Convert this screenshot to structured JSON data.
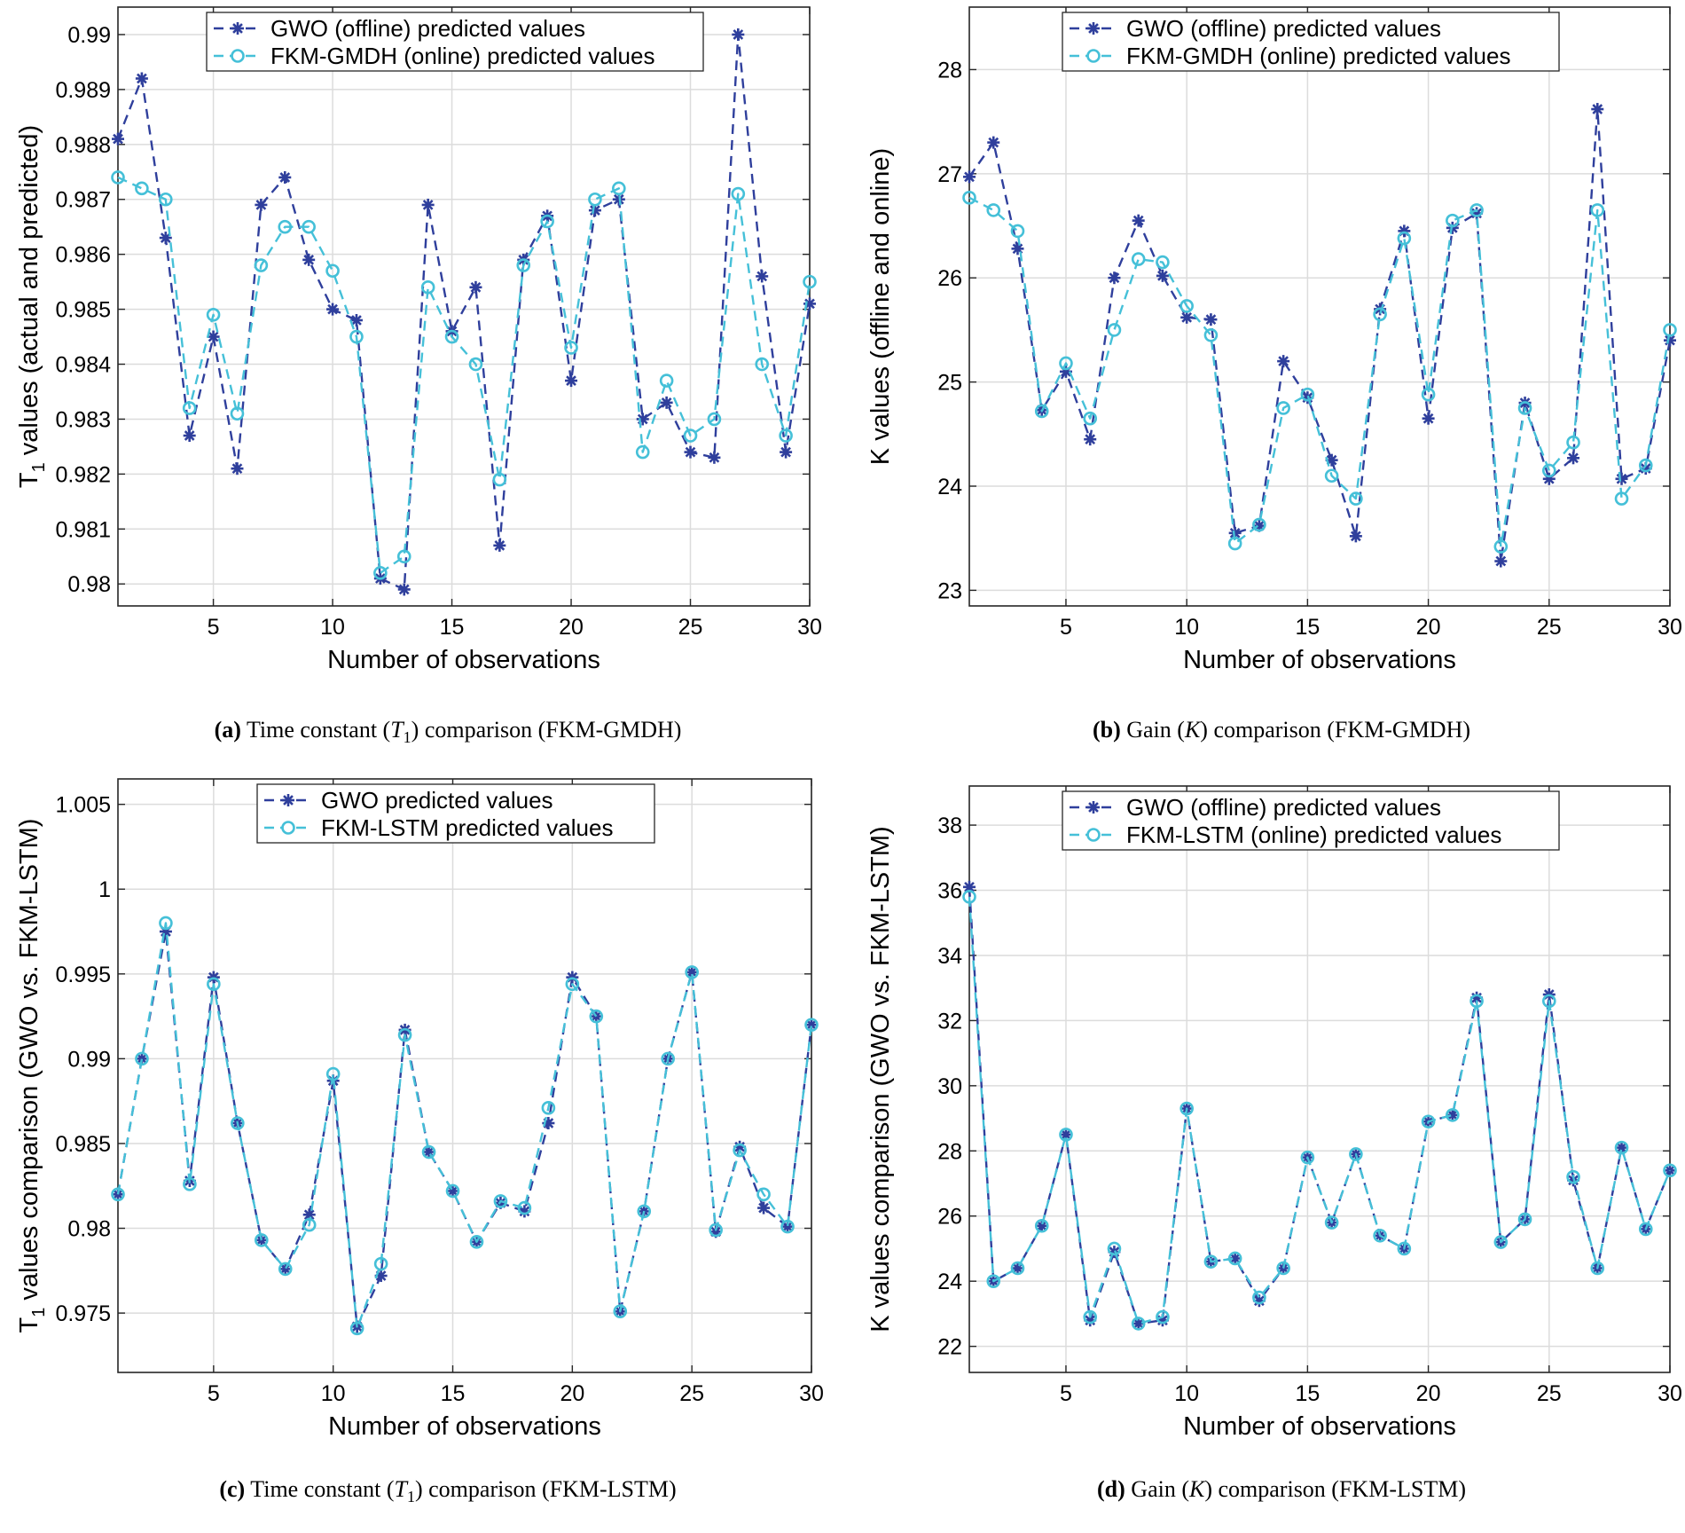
{
  "charts": [
    {
      "id": "a",
      "caption": {
        "label": "(a)",
        "before": "Time constant (",
        "symbol": "T",
        "sub": "1",
        "after": ") comparison (FKM-GMDH)"
      },
      "chart_data": {
        "type": "line",
        "xlabel": "Number of observations",
        "ylabel": "T1 values (actual and predicted)",
        "ylabel_main": "T",
        "ylabel_sub": "1",
        "ylabel_rest": " values (actual and predicted)",
        "xlim": [
          1,
          30
        ],
        "ylim": [
          0.9796,
          0.9905
        ],
        "xticks": [
          5,
          10,
          15,
          20,
          25,
          30
        ],
        "yticks": [
          0.98,
          0.981,
          0.982,
          0.983,
          0.984,
          0.985,
          0.986,
          0.987,
          0.988,
          0.989,
          0.99
        ],
        "ytick_labels": [
          "0.98",
          "0.981",
          "0.982",
          "0.983",
          "0.984",
          "0.985",
          "0.986",
          "0.987",
          "0.988",
          "0.989",
          "0.99"
        ],
        "legend_position": "top-center",
        "x": [
          1,
          2,
          3,
          4,
          5,
          6,
          7,
          8,
          9,
          10,
          11,
          12,
          13,
          14,
          15,
          16,
          17,
          18,
          19,
          20,
          21,
          22,
          23,
          24,
          25,
          26,
          27,
          28,
          29,
          30
        ],
        "series": [
          {
            "name": "GWO (offline) predicted values",
            "color": "#2f3f9c",
            "marker": "star",
            "values": [
              0.9881,
              0.9892,
              0.9863,
              0.9827,
              0.9845,
              0.9821,
              0.9869,
              0.9874,
              0.9859,
              0.985,
              0.9848,
              0.9801,
              0.9799,
              0.9869,
              0.9846,
              0.9854,
              0.9807,
              0.9859,
              0.9867,
              0.9837,
              0.9868,
              0.987,
              0.983,
              0.9833,
              0.9824,
              0.9823,
              0.99,
              0.9856,
              0.9824,
              0.9851
            ]
          },
          {
            "name": "FKM-GMDH (online) predicted values",
            "color": "#45c0d8",
            "marker": "circle",
            "values": [
              0.9874,
              0.9872,
              0.987,
              0.9832,
              0.9849,
              0.9831,
              0.9858,
              0.9865,
              0.9865,
              0.9857,
              0.9845,
              0.9802,
              0.9805,
              0.9854,
              0.9845,
              0.984,
              0.9819,
              0.9858,
              0.9866,
              0.9843,
              0.987,
              0.9872,
              0.9824,
              0.9837,
              0.9827,
              0.983,
              0.9871,
              0.984,
              0.9827,
              0.9855
            ]
          }
        ]
      }
    },
    {
      "id": "b",
      "caption": {
        "label": "(b)",
        "before": "Gain (",
        "symbol": "K",
        "sub": "",
        "after": ") comparison (FKM-GMDH)"
      },
      "chart_data": {
        "type": "line",
        "xlabel": "Number of observations",
        "ylabel": "K values (offline and online)",
        "xlim": [
          1,
          30
        ],
        "ylim": [
          22.85,
          28.6
        ],
        "xticks": [
          5,
          10,
          15,
          20,
          25,
          30
        ],
        "yticks": [
          23,
          24,
          25,
          26,
          27,
          28
        ],
        "ytick_labels": [
          "23",
          "24",
          "25",
          "26",
          "27",
          "28"
        ],
        "legend_position": "top-center",
        "x": [
          1,
          2,
          3,
          4,
          5,
          6,
          7,
          8,
          9,
          10,
          11,
          12,
          13,
          14,
          15,
          16,
          17,
          18,
          19,
          20,
          21,
          22,
          23,
          24,
          25,
          26,
          27,
          28,
          29,
          30
        ],
        "series": [
          {
            "name": "GWO (offline) predicted values",
            "color": "#2f3f9c",
            "marker": "star",
            "values": [
              26.97,
              27.3,
              26.28,
              24.73,
              25.1,
              24.45,
              26.0,
              26.55,
              26.02,
              25.62,
              25.6,
              23.55,
              23.62,
              25.2,
              24.85,
              24.25,
              23.52,
              25.7,
              26.45,
              24.65,
              26.48,
              26.62,
              23.28,
              24.8,
              24.07,
              24.27,
              27.62,
              24.07,
              24.17,
              25.4
            ]
          },
          {
            "name": "FKM-GMDH (online) predicted values",
            "color": "#45c0d8",
            "marker": "circle",
            "values": [
              26.77,
              26.65,
              26.45,
              24.72,
              25.18,
              24.65,
              25.5,
              26.18,
              26.15,
              25.73,
              25.45,
              23.45,
              23.63,
              24.75,
              24.88,
              24.1,
              23.88,
              25.65,
              26.38,
              24.88,
              26.55,
              26.65,
              23.42,
              24.75,
              24.15,
              24.42,
              26.65,
              23.88,
              24.2,
              25.5
            ]
          }
        ]
      }
    },
    {
      "id": "c",
      "caption": {
        "label": "(c)",
        "before": "Time constant (",
        "symbol": "T",
        "sub": "1",
        "after": ") comparison (FKM-LSTM)"
      },
      "chart_data": {
        "type": "line",
        "xlabel": "Number of observations",
        "ylabel": "T1 values comparison (GWO vs. FKM-LSTM)",
        "ylabel_main": "T",
        "ylabel_sub": "1",
        "ylabel_rest": " values  comparison  (GWO vs.  FKM-LSTM)",
        "xlim": [
          1,
          30
        ],
        "ylim": [
          0.9715,
          1.0065
        ],
        "xticks": [
          5,
          10,
          15,
          20,
          25,
          30
        ],
        "yticks": [
          0.975,
          0.98,
          0.985,
          0.99,
          0.995,
          1.0,
          1.005
        ],
        "ytick_labels": [
          "0.975",
          "0.98",
          "0.985",
          "0.99",
          "0.995",
          "1",
          "1.005"
        ],
        "legend_position": "top-center",
        "x": [
          1,
          2,
          3,
          4,
          5,
          6,
          7,
          8,
          9,
          10,
          11,
          12,
          13,
          14,
          15,
          16,
          17,
          18,
          19,
          20,
          21,
          22,
          23,
          24,
          25,
          26,
          27,
          28,
          29,
          30
        ],
        "series": [
          {
            "name": "GWO predicted values",
            "color": "#2f3f9c",
            "marker": "star",
            "values": [
              0.982,
              0.99,
              0.9975,
              0.9828,
              0.9948,
              0.9862,
              0.9793,
              0.9776,
              0.9808,
              0.9887,
              0.9742,
              0.9772,
              0.9917,
              0.9845,
              0.9822,
              0.9792,
              0.9815,
              0.981,
              0.9862,
              0.9948,
              0.9925,
              0.9751,
              0.981,
              0.99,
              0.9951,
              0.9798,
              0.9848,
              0.9812,
              0.9801,
              0.992
            ]
          },
          {
            "name": "FKM-LSTM predicted values",
            "color": "#45c0d8",
            "marker": "circle",
            "values": [
              0.982,
              0.99,
              0.998,
              0.9826,
              0.9944,
              0.9862,
              0.9793,
              0.9776,
              0.9802,
              0.9891,
              0.9741,
              0.9779,
              0.9914,
              0.9845,
              0.9822,
              0.9792,
              0.9816,
              0.9812,
              0.9871,
              0.9944,
              0.9925,
              0.9751,
              0.981,
              0.99,
              0.9951,
              0.9799,
              0.9846,
              0.982,
              0.9801,
              0.992
            ]
          }
        ]
      }
    },
    {
      "id": "d",
      "caption": {
        "label": "(d)",
        "before": "Gain (",
        "symbol": "K",
        "sub": "",
        "after": ") comparison (FKM-LSTM)"
      },
      "chart_data": {
        "type": "line",
        "xlabel": "Number of observations",
        "ylabel": "K values comparison (GWO vs. FKM-LSTM)",
        "xlim": [
          1,
          30
        ],
        "ylim": [
          21.2,
          39.2
        ],
        "xticks": [
          5,
          10,
          15,
          20,
          25,
          30
        ],
        "yticks": [
          22,
          24,
          26,
          28,
          30,
          32,
          34,
          36,
          38
        ],
        "ytick_labels": [
          "22",
          "24",
          "26",
          "28",
          "30",
          "32",
          "34",
          "36",
          "38"
        ],
        "legend_position": "top-center",
        "x": [
          1,
          2,
          3,
          4,
          5,
          6,
          7,
          8,
          9,
          10,
          11,
          12,
          13,
          14,
          15,
          16,
          17,
          18,
          19,
          20,
          21,
          22,
          23,
          24,
          25,
          26,
          27,
          28,
          29,
          30
        ],
        "series": [
          {
            "name": "GWO (offline) predicted values",
            "color": "#2f3f9c",
            "marker": "star",
            "values": [
              36.1,
              24.0,
              24.4,
              25.7,
              28.5,
              22.8,
              24.9,
              22.7,
              22.8,
              29.3,
              24.6,
              24.7,
              23.4,
              24.4,
              27.8,
              25.8,
              27.9,
              25.4,
              25.0,
              28.9,
              29.1,
              32.7,
              25.2,
              25.9,
              32.8,
              27.1,
              24.4,
              28.1,
              25.6,
              27.4
            ]
          },
          {
            "name": "FKM-LSTM (online) predicted values",
            "color": "#45c0d8",
            "marker": "circle",
            "values": [
              35.8,
              24.0,
              24.4,
              25.7,
              28.5,
              22.9,
              25.0,
              22.7,
              22.9,
              29.3,
              24.6,
              24.7,
              23.5,
              24.4,
              27.8,
              25.8,
              27.9,
              25.4,
              25.0,
              28.9,
              29.1,
              32.6,
              25.2,
              25.9,
              32.6,
              27.2,
              24.4,
              28.1,
              25.6,
              27.4
            ]
          }
        ]
      }
    }
  ]
}
